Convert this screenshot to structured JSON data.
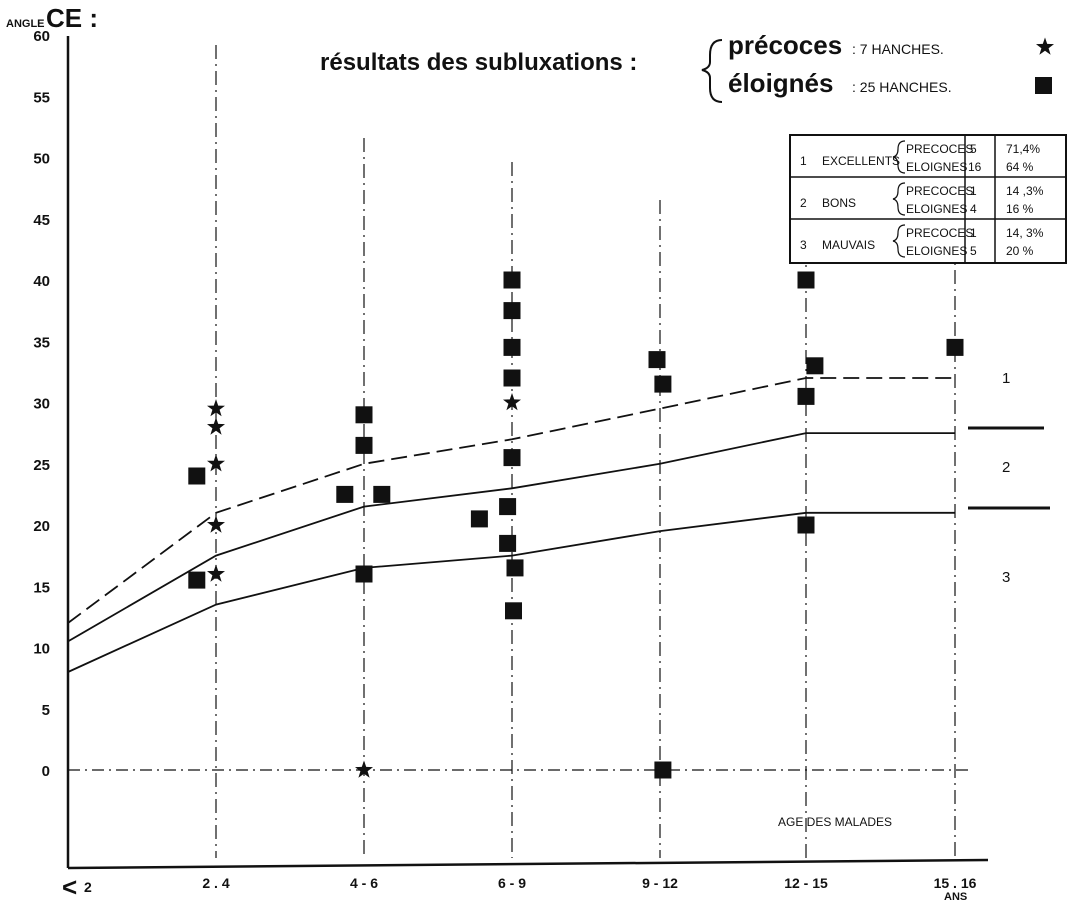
{
  "chart_data": {
    "type": "scatter",
    "y_axis_label_small": "ANGLE",
    "y_axis_label_big": "CE :",
    "ylim": [
      -15,
      60
    ],
    "y_ticks": [
      0,
      5,
      10,
      15,
      20,
      25,
      30,
      35,
      40,
      45,
      50,
      55,
      60
    ],
    "x_tick_labels": [
      "2 . 4",
      "4 - 6",
      "6 - 9",
      "9 - 12",
      "12 - 15",
      "15 . 16"
    ],
    "x_first_label": "< 2",
    "x_last_suffix": "ANS",
    "x_axis_note": "AGE DES MALADES",
    "title": "résultats des subluxations :",
    "legend": [
      {
        "label_big": "précoces",
        "label_small": ": 7 HANCHES.",
        "marker": "star"
      },
      {
        "label_big": "éloignés",
        "label_small": ": 25 HANCHES.",
        "marker": "square"
      }
    ],
    "reference_lines": [
      {
        "style": "dashed",
        "x": [
          0,
          1,
          2,
          3,
          4,
          5,
          6
        ],
        "y": [
          12,
          21,
          25,
          27,
          29.5,
          32,
          32
        ]
      },
      {
        "style": "solid",
        "x": [
          0,
          1,
          2,
          3,
          4,
          5,
          6
        ],
        "y": [
          10.5,
          17.5,
          21.5,
          23,
          25,
          27.5,
          27.5
        ]
      },
      {
        "style": "solid",
        "x": [
          0,
          1,
          2,
          3,
          4,
          5,
          6
        ],
        "y": [
          8,
          13.5,
          16.5,
          17.5,
          19.5,
          21,
          21
        ]
      }
    ],
    "zones": [
      "1",
      "2",
      "3"
    ],
    "series": [
      {
        "name": "précoces",
        "marker": "star",
        "points": [
          {
            "x": 1,
            "y": 29.5
          },
          {
            "x": 1,
            "y": 28
          },
          {
            "x": 1,
            "y": 25
          },
          {
            "x": 1,
            "y": 20
          },
          {
            "x": 1,
            "y": 16
          },
          {
            "x": 2,
            "y": 0
          },
          {
            "x": 3,
            "y": 30
          }
        ]
      },
      {
        "name": "éloignés",
        "marker": "square",
        "points": [
          {
            "x": 0.87,
            "y": 24
          },
          {
            "x": 0.87,
            "y": 15.5
          },
          {
            "x": 2,
            "y": 29
          },
          {
            "x": 2,
            "y": 26.5
          },
          {
            "x": 1.87,
            "y": 22.5
          },
          {
            "x": 2.12,
            "y": 22.5
          },
          {
            "x": 2,
            "y": 16
          },
          {
            "x": 3,
            "y": 40
          },
          {
            "x": 3,
            "y": 37.5
          },
          {
            "x": 3,
            "y": 34.5
          },
          {
            "x": 3,
            "y": 32
          },
          {
            "x": 3,
            "y": 25.5
          },
          {
            "x": 2.78,
            "y": 20.5
          },
          {
            "x": 2.97,
            "y": 21.5
          },
          {
            "x": 2.97,
            "y": 18.5
          },
          {
            "x": 3.02,
            "y": 16.5
          },
          {
            "x": 3.01,
            "y": 13
          },
          {
            "x": 3.98,
            "y": 33.5
          },
          {
            "x": 4.02,
            "y": 31.5
          },
          {
            "x": 4.02,
            "y": 0
          },
          {
            "x": 5,
            "y": 40
          },
          {
            "x": 5.06,
            "y": 33
          },
          {
            "x": 5,
            "y": 30.5
          },
          {
            "x": 5,
            "y": 20
          },
          {
            "x": 6,
            "y": 34.5
          }
        ]
      }
    ],
    "results_table": {
      "rows": [
        {
          "num": "1",
          "label": "EXCELLENTS",
          "sub": [
            {
              "group": "PRECOCES",
              "n": "5",
              "pct": "71,4%"
            },
            {
              "group": "ELOIGNES",
              "n": "16",
              "pct": "64 %"
            }
          ]
        },
        {
          "num": "2",
          "label": "BONS",
          "sub": [
            {
              "group": "PRECOCES",
              "n": "1",
              "pct": "14 ,3%"
            },
            {
              "group": "ELOIGNES",
              "n": "4",
              "pct": "16 %"
            }
          ]
        },
        {
          "num": "3",
          "label": "MAUVAIS",
          "sub": [
            {
              "group": "PRECOCES",
              "n": "1",
              "pct": "14, 3%"
            },
            {
              "group": "ELOIGNES",
              "n": "5",
              "pct": "20 %"
            }
          ]
        }
      ]
    }
  }
}
